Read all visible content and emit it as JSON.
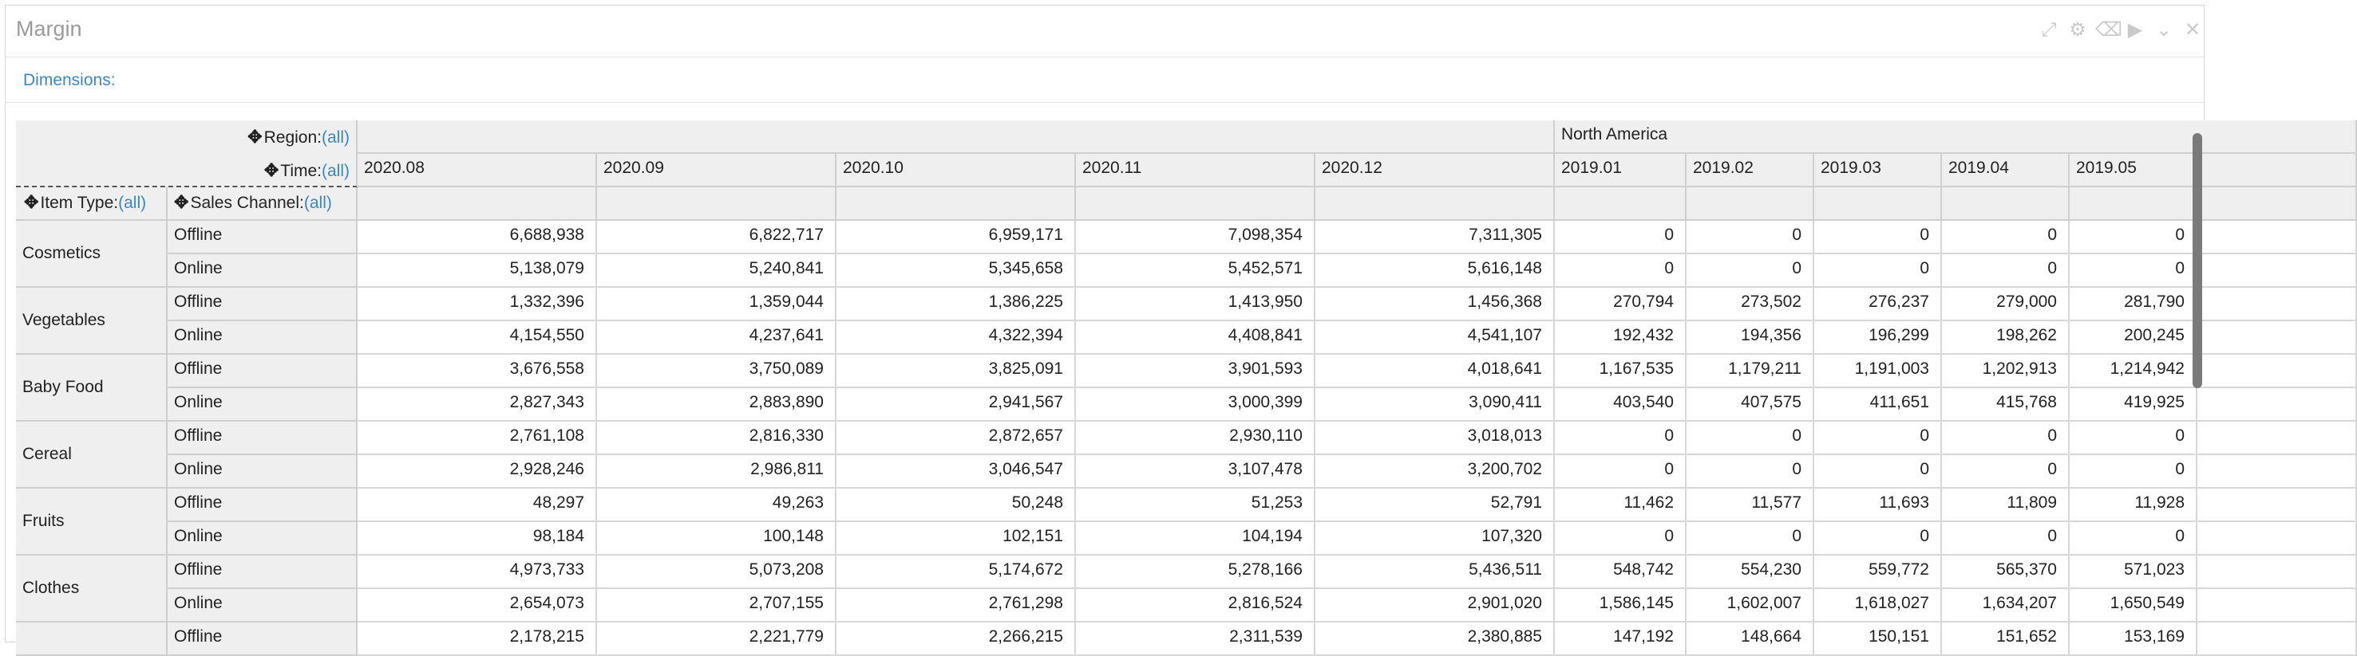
{
  "window": {
    "title": "Margin"
  },
  "dimensions_label": "Dimensions:",
  "pivot": {
    "region_label": "Region:",
    "time_label": "Time:",
    "item_type_label": "Item Type:",
    "sales_channel_label": "Sales Channel:",
    "all_text": "(all)",
    "region_group": "North America",
    "columns": [
      "2020.08",
      "2020.09",
      "2020.10",
      "2020.11",
      "2020.12",
      "2019.01",
      "2019.02",
      "2019.03",
      "2019.04",
      "2019.05"
    ],
    "groups": [
      {
        "name": "Cosmetics",
        "rows": [
          {
            "channel": "Offline",
            "values": [
              "6,688,938",
              "6,822,717",
              "6,959,171",
              "7,098,354",
              "7,311,305",
              "0",
              "0",
              "0",
              "0",
              "0"
            ]
          },
          {
            "channel": "Online",
            "values": [
              "5,138,079",
              "5,240,841",
              "5,345,658",
              "5,452,571",
              "5,616,148",
              "0",
              "0",
              "0",
              "0",
              "0"
            ]
          }
        ]
      },
      {
        "name": "Vegetables",
        "rows": [
          {
            "channel": "Offline",
            "values": [
              "1,332,396",
              "1,359,044",
              "1,386,225",
              "1,413,950",
              "1,456,368",
              "270,794",
              "273,502",
              "276,237",
              "279,000",
              "281,790"
            ]
          },
          {
            "channel": "Online",
            "values": [
              "4,154,550",
              "4,237,641",
              "4,322,394",
              "4,408,841",
              "4,541,107",
              "192,432",
              "194,356",
              "196,299",
              "198,262",
              "200,245"
            ]
          }
        ]
      },
      {
        "name": "Baby Food",
        "rows": [
          {
            "channel": "Offline",
            "values": [
              "3,676,558",
              "3,750,089",
              "3,825,091",
              "3,901,593",
              "4,018,641",
              "1,167,535",
              "1,179,211",
              "1,191,003",
              "1,202,913",
              "1,214,942"
            ]
          },
          {
            "channel": "Online",
            "values": [
              "2,827,343",
              "2,883,890",
              "2,941,567",
              "3,000,399",
              "3,090,411",
              "403,540",
              "407,575",
              "411,651",
              "415,768",
              "419,925"
            ]
          }
        ]
      },
      {
        "name": "Cereal",
        "rows": [
          {
            "channel": "Offline",
            "values": [
              "2,761,108",
              "2,816,330",
              "2,872,657",
              "2,930,110",
              "3,018,013",
              "0",
              "0",
              "0",
              "0",
              "0"
            ]
          },
          {
            "channel": "Online",
            "values": [
              "2,928,246",
              "2,986,811",
              "3,046,547",
              "3,107,478",
              "3,200,702",
              "0",
              "0",
              "0",
              "0",
              "0"
            ]
          }
        ]
      },
      {
        "name": "Fruits",
        "rows": [
          {
            "channel": "Offline",
            "values": [
              "48,297",
              "49,263",
              "50,248",
              "51,253",
              "52,791",
              "11,462",
              "11,577",
              "11,693",
              "11,809",
              "11,928"
            ]
          },
          {
            "channel": "Online",
            "values": [
              "98,184",
              "100,148",
              "102,151",
              "104,194",
              "107,320",
              "0",
              "0",
              "0",
              "0",
              "0"
            ]
          }
        ]
      },
      {
        "name": "Clothes",
        "rows": [
          {
            "channel": "Offline",
            "values": [
              "4,973,733",
              "5,073,208",
              "5,174,672",
              "5,278,166",
              "5,436,511",
              "548,742",
              "554,230",
              "559,772",
              "565,370",
              "571,023"
            ]
          },
          {
            "channel": "Online",
            "values": [
              "2,654,073",
              "2,707,155",
              "2,761,298",
              "2,816,524",
              "2,901,020",
              "1,586,145",
              "1,602,007",
              "1,618,027",
              "1,634,207",
              "1,650,549"
            ]
          }
        ]
      },
      {
        "name": "",
        "rows": [
          {
            "channel": "Offline",
            "values": [
              "2,178,215",
              "2,221,779",
              "2,266,215",
              "2,311,539",
              "2,380,885",
              "147,192",
              "148,664",
              "150,151",
              "151,652",
              "153,169"
            ]
          }
        ]
      }
    ]
  }
}
